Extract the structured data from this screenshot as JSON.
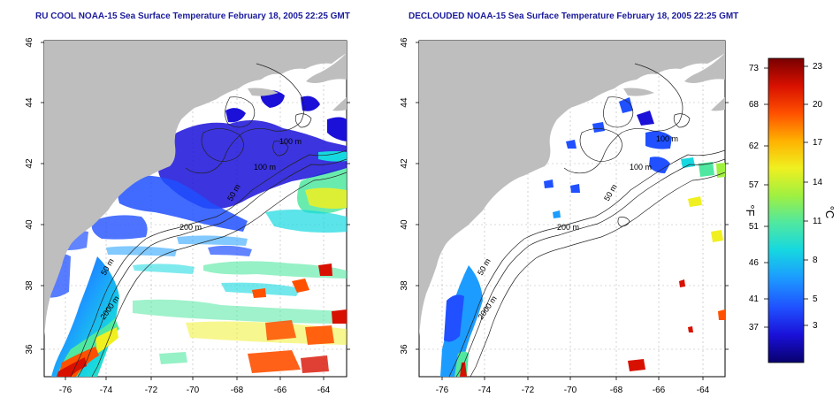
{
  "panels": [
    {
      "title": "RU COOL NOAA-15 Sea Surface Temperature February 18, 2005 22:25 GMT",
      "x_ticks": [
        "-76",
        "-74",
        "-72",
        "-70",
        "-68",
        "-66",
        "-64"
      ],
      "y_ticks": [
        "36",
        "38",
        "40",
        "42",
        "44",
        "46"
      ],
      "contour_labels": [
        "100 m",
        "100 m",
        "50 m",
        "200 m",
        "50 m",
        "2000 m"
      ]
    },
    {
      "title": "DECLOUDED NOAA-15 Sea Surface Temperature February 18, 2005 22:25 GMT",
      "x_ticks": [
        "-76",
        "-74",
        "-72",
        "-70",
        "-68",
        "-66",
        "-64"
      ],
      "y_ticks": [
        "36",
        "38",
        "40",
        "42",
        "44",
        "46"
      ],
      "contour_labels": [
        "100 m",
        "100 m",
        "50 m",
        "200 m",
        "50 m",
        "2000 m"
      ]
    }
  ],
  "colorbar": {
    "fahrenheit_label": "°F",
    "celsius_label": "°C",
    "fahrenheit_ticks": [
      "73",
      "68",
      "62",
      "57",
      "51",
      "46",
      "41",
      "37"
    ],
    "celsius_ticks": [
      "23",
      "20",
      "17",
      "14",
      "11",
      "8",
      "5",
      "3"
    ],
    "colors": [
      "#08006e",
      "#1a10d8",
      "#2050ff",
      "#1c9cff",
      "#16d8e0",
      "#50e8a0",
      "#a0f040",
      "#f0f020",
      "#ffb000",
      "#ff5000",
      "#d81000",
      "#780000"
    ]
  },
  "colors": {
    "land": "#bebebe",
    "title": "#1a1a9c",
    "grid": "#b4b4b4"
  }
}
